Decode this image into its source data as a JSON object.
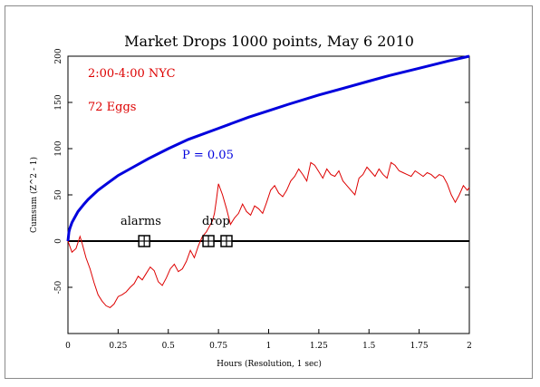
{
  "chart_data": {
    "type": "line",
    "title": "Market Drops 1000 points, May 6 2010",
    "xlabel": "Hours (Resolution, 1 sec)",
    "ylabel": "Cumsum (Z^2 - 1)",
    "xlim": [
      0,
      2
    ],
    "ylim": [
      -100,
      200
    ],
    "x_ticks": [
      0,
      0.25,
      0.5,
      0.75,
      1,
      1.25,
      1.5,
      1.75,
      2
    ],
    "x_tick_labels": [
      "0",
      "0.25",
      "0.5",
      "0.75",
      "1",
      "1.25",
      "1.5",
      "1.75",
      "2"
    ],
    "y_ticks": [
      -50,
      0,
      50,
      100,
      150,
      200
    ],
    "y_tick_labels": [
      "-50",
      "0",
      "50",
      "100",
      "150",
      "200"
    ],
    "grid": false,
    "annotations": {
      "time_range": "2:00-4:00 NYC",
      "eggs": "72 Eggs",
      "p_label": "P = 0.05",
      "alarms_label": "alarms",
      "drop_label": "drop"
    },
    "reference_line": {
      "y": 0
    },
    "event_markers": [
      {
        "name": "alarm",
        "x": 0.38,
        "y": 0
      },
      {
        "name": "drop",
        "x": 0.7,
        "y": 0
      },
      {
        "name": "drop",
        "x": 0.79,
        "y": 0
      }
    ],
    "series": [
      {
        "color": "#0000dd",
        "x": [
          0,
          0.005,
          0.01,
          0.02,
          0.03,
          0.05,
          0.08,
          0.1,
          0.15,
          0.2,
          0.25,
          0.3,
          0.4,
          0.5,
          0.6,
          0.75,
          0.9,
          1.0,
          1.1,
          1.25,
          1.4,
          1.5,
          1.6,
          1.75,
          1.9,
          2.0
        ],
        "values": [
          0,
          10,
          14,
          20,
          24,
          32,
          40,
          45,
          55,
          63,
          71,
          77,
          89,
          100,
          110,
          122,
          134,
          141,
          148,
          158,
          167,
          173,
          179,
          187,
          195,
          200
        ]
      },
      {
        "color": "#dd0000",
        "x": [
          0,
          0.02,
          0.04,
          0.06,
          0.07,
          0.09,
          0.11,
          0.13,
          0.15,
          0.17,
          0.19,
          0.21,
          0.23,
          0.25,
          0.27,
          0.29,
          0.31,
          0.33,
          0.35,
          0.37,
          0.39,
          0.41,
          0.43,
          0.45,
          0.47,
          0.49,
          0.51,
          0.53,
          0.55,
          0.57,
          0.59,
          0.61,
          0.63,
          0.65,
          0.67,
          0.69,
          0.71,
          0.72,
          0.73,
          0.74,
          0.75,
          0.77,
          0.79,
          0.81,
          0.83,
          0.85,
          0.87,
          0.89,
          0.91,
          0.93,
          0.95,
          0.97,
          0.99,
          1.01,
          1.03,
          1.05,
          1.07,
          1.09,
          1.11,
          1.13,
          1.15,
          1.17,
          1.19,
          1.21,
          1.23,
          1.25,
          1.27,
          1.29,
          1.31,
          1.33,
          1.35,
          1.37,
          1.39,
          1.41,
          1.43,
          1.45,
          1.47,
          1.49,
          1.51,
          1.53,
          1.55,
          1.57,
          1.59,
          1.61,
          1.63,
          1.65,
          1.67,
          1.69,
          1.71,
          1.73,
          1.75,
          1.77,
          1.79,
          1.81,
          1.83,
          1.85,
          1.87,
          1.89,
          1.91,
          1.93,
          1.95,
          1.97,
          1.99,
          2.0
        ],
        "values": [
          0,
          -12,
          -8,
          5,
          -2,
          -18,
          -30,
          -45,
          -58,
          -65,
          -70,
          -72,
          -68,
          -60,
          -58,
          -55,
          -50,
          -46,
          -38,
          -42,
          -35,
          -28,
          -32,
          -44,
          -48,
          -40,
          -30,
          -25,
          -33,
          -30,
          -22,
          -10,
          -18,
          -5,
          5,
          10,
          18,
          22,
          30,
          45,
          62,
          50,
          35,
          18,
          25,
          30,
          40,
          32,
          28,
          38,
          35,
          30,
          42,
          55,
          60,
          52,
          48,
          55,
          65,
          70,
          78,
          72,
          65,
          85,
          82,
          75,
          68,
          78,
          72,
          70,
          76,
          65,
          60,
          55,
          50,
          68,
          72,
          80,
          75,
          70,
          78,
          72,
          68,
          85,
          82,
          76,
          74,
          72,
          70,
          76,
          73,
          70,
          74,
          72,
          68,
          72,
          70,
          62,
          50,
          42,
          50,
          60,
          55,
          58
        ]
      }
    ]
  }
}
